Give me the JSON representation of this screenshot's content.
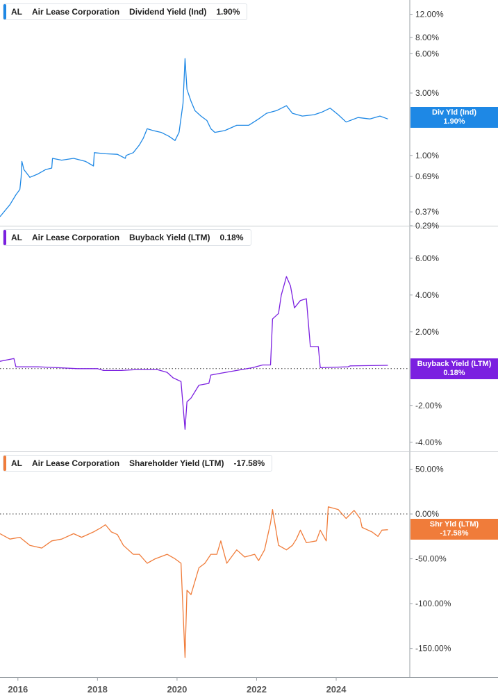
{
  "chart_data": [
    {
      "type": "line",
      "ticker": "AL",
      "company": "Air Lease Corporation",
      "metric": "Dividend Yield (Ind)",
      "current_value": "1.90%",
      "badge_label": "Div Yld (Ind)",
      "color": "#1e88e5",
      "scale": "log",
      "ylim": [
        0.29,
        14
      ],
      "yticks": [
        {
          "value": 12,
          "label": "12.00%"
        },
        {
          "value": 8,
          "label": "8.00%"
        },
        {
          "value": 6,
          "label": "6.00%"
        },
        {
          "value": 3,
          "label": "3.00%"
        },
        {
          "value": 1,
          "label": "1.00%"
        },
        {
          "value": 0.69,
          "label": "0.69%"
        },
        {
          "value": 0.37,
          "label": "0.37%"
        },
        {
          "value": 0.29,
          "label": "0.29%"
        }
      ],
      "baseline": null,
      "points": [
        [
          2015.55,
          0.34
        ],
        [
          2015.8,
          0.42
        ],
        [
          2015.95,
          0.5
        ],
        [
          2016.05,
          0.55
        ],
        [
          2016.08,
          0.68
        ],
        [
          2016.1,
          0.9
        ],
        [
          2016.15,
          0.78
        ],
        [
          2016.3,
          0.68
        ],
        [
          2016.5,
          0.72
        ],
        [
          2016.7,
          0.78
        ],
        [
          2016.85,
          0.8
        ],
        [
          2016.87,
          0.95
        ],
        [
          2017.1,
          0.92
        ],
        [
          2017.4,
          0.95
        ],
        [
          2017.7,
          0.9
        ],
        [
          2017.9,
          0.83
        ],
        [
          2017.92,
          1.05
        ],
        [
          2018.2,
          1.03
        ],
        [
          2018.5,
          1.02
        ],
        [
          2018.7,
          0.95
        ],
        [
          2018.72,
          1.0
        ],
        [
          2018.9,
          1.05
        ],
        [
          2019.05,
          1.2
        ],
        [
          2019.15,
          1.35
        ],
        [
          2019.25,
          1.6
        ],
        [
          2019.4,
          1.55
        ],
        [
          2019.6,
          1.5
        ],
        [
          2019.8,
          1.4
        ],
        [
          2019.95,
          1.3
        ],
        [
          2020.05,
          1.5
        ],
        [
          2020.15,
          2.5
        ],
        [
          2020.2,
          5.5
        ],
        [
          2020.25,
          3.2
        ],
        [
          2020.35,
          2.6
        ],
        [
          2020.45,
          2.2
        ],
        [
          2020.6,
          2.0
        ],
        [
          2020.75,
          1.85
        ],
        [
          2020.85,
          1.6
        ],
        [
          2020.95,
          1.5
        ],
        [
          2021.2,
          1.55
        ],
        [
          2021.5,
          1.7
        ],
        [
          2021.8,
          1.7
        ],
        [
          2022.05,
          1.9
        ],
        [
          2022.25,
          2.1
        ],
        [
          2022.5,
          2.2
        ],
        [
          2022.75,
          2.4
        ],
        [
          2022.9,
          2.1
        ],
        [
          2023.15,
          2.0
        ],
        [
          2023.45,
          2.05
        ],
        [
          2023.65,
          2.15
        ],
        [
          2023.85,
          2.3
        ],
        [
          2024.05,
          2.05
        ],
        [
          2024.25,
          1.8
        ],
        [
          2024.55,
          1.95
        ],
        [
          2024.85,
          1.9
        ],
        [
          2025.1,
          2.0
        ],
        [
          2025.3,
          1.9
        ]
      ]
    },
    {
      "type": "line",
      "ticker": "AL",
      "company": "Air Lease Corporation",
      "metric": "Buyback Yield (LTM)",
      "current_value": "0.18%",
      "badge_label": "Buyback Yield (LTM)",
      "color": "#7b1fe0",
      "scale": "linear",
      "ylim": [
        -4.5,
        7.2
      ],
      "yticks": [
        {
          "value": 6,
          "label": "6.00%"
        },
        {
          "value": 4,
          "label": "4.00%"
        },
        {
          "value": 2,
          "label": "2.00%"
        },
        {
          "value": -2,
          "label": "-2.00%"
        },
        {
          "value": -4,
          "label": "-4.00%"
        }
      ],
      "baseline": 0,
      "points": [
        [
          2015.55,
          0.4
        ],
        [
          2015.9,
          0.55
        ],
        [
          2015.95,
          0.1
        ],
        [
          2016.5,
          0.1
        ],
        [
          2017.0,
          0.05
        ],
        [
          2017.5,
          0.0
        ],
        [
          2018.0,
          0.0
        ],
        [
          2018.15,
          -0.1
        ],
        [
          2018.6,
          -0.1
        ],
        [
          2019.0,
          -0.05
        ],
        [
          2019.5,
          -0.05
        ],
        [
          2019.75,
          -0.2
        ],
        [
          2019.9,
          -0.5
        ],
        [
          2020.1,
          -0.7
        ],
        [
          2020.2,
          -3.3
        ],
        [
          2020.25,
          -1.8
        ],
        [
          2020.35,
          -1.6
        ],
        [
          2020.55,
          -0.9
        ],
        [
          2020.8,
          -0.8
        ],
        [
          2020.85,
          -0.35
        ],
        [
          2021.1,
          -0.25
        ],
        [
          2021.5,
          -0.1
        ],
        [
          2021.9,
          0.05
        ],
        [
          2022.15,
          0.2
        ],
        [
          2022.35,
          0.2
        ],
        [
          2022.4,
          2.7
        ],
        [
          2022.55,
          3.0
        ],
        [
          2022.62,
          4.0
        ],
        [
          2022.75,
          5.0
        ],
        [
          2022.85,
          4.5
        ],
        [
          2022.95,
          3.3
        ],
        [
          2023.1,
          3.7
        ],
        [
          2023.25,
          3.8
        ],
        [
          2023.35,
          1.2
        ],
        [
          2023.55,
          1.2
        ],
        [
          2023.6,
          0.05
        ],
        [
          2024.3,
          0.1
        ],
        [
          2024.35,
          0.15
        ],
        [
          2025.3,
          0.18
        ]
      ]
    },
    {
      "type": "line",
      "ticker": "AL",
      "company": "Air Lease Corporation",
      "metric": "Shareholder Yield (LTM)",
      "current_value": "-17.58%",
      "badge_label": "Shr Yld (LTM)",
      "color": "#f07c3a",
      "scale": "linear",
      "ylim": [
        -182,
        62
      ],
      "yticks": [
        {
          "value": 50,
          "label": "50.00%"
        },
        {
          "value": 0,
          "label": "0.00%"
        },
        {
          "value": -50,
          "label": "-50.00%"
        },
        {
          "value": -100,
          "label": "-100.00%"
        },
        {
          "value": -150,
          "label": "-150.00%"
        }
      ],
      "baseline": 0,
      "points": [
        [
          2015.55,
          -22
        ],
        [
          2015.8,
          -28
        ],
        [
          2016.05,
          -26
        ],
        [
          2016.3,
          -35
        ],
        [
          2016.6,
          -38
        ],
        [
          2016.85,
          -30
        ],
        [
          2017.1,
          -28
        ],
        [
          2017.4,
          -22
        ],
        [
          2017.6,
          -26
        ],
        [
          2017.9,
          -20
        ],
        [
          2018.1,
          -15
        ],
        [
          2018.2,
          -12
        ],
        [
          2018.35,
          -20
        ],
        [
          2018.5,
          -23
        ],
        [
          2018.65,
          -35
        ],
        [
          2018.9,
          -45
        ],
        [
          2019.05,
          -45
        ],
        [
          2019.25,
          -55
        ],
        [
          2019.45,
          -50
        ],
        [
          2019.75,
          -45
        ],
        [
          2019.95,
          -50
        ],
        [
          2020.1,
          -55
        ],
        [
          2020.2,
          -160
        ],
        [
          2020.25,
          -85
        ],
        [
          2020.35,
          -90
        ],
        [
          2020.55,
          -60
        ],
        [
          2020.7,
          -55
        ],
        [
          2020.85,
          -45
        ],
        [
          2021.0,
          -45
        ],
        [
          2021.1,
          -30
        ],
        [
          2021.25,
          -55
        ],
        [
          2021.5,
          -40
        ],
        [
          2021.7,
          -48
        ],
        [
          2021.95,
          -45
        ],
        [
          2022.05,
          -52
        ],
        [
          2022.2,
          -40
        ],
        [
          2022.35,
          -10
        ],
        [
          2022.4,
          5
        ],
        [
          2022.55,
          -35
        ],
        [
          2022.75,
          -40
        ],
        [
          2022.9,
          -35
        ],
        [
          2023.0,
          -28
        ],
        [
          2023.1,
          -18
        ],
        [
          2023.25,
          -32
        ],
        [
          2023.5,
          -30
        ],
        [
          2023.6,
          -18
        ],
        [
          2023.75,
          -30
        ],
        [
          2023.8,
          8
        ],
        [
          2024.05,
          5
        ],
        [
          2024.25,
          -5
        ],
        [
          2024.45,
          4
        ],
        [
          2024.6,
          -5
        ],
        [
          2024.65,
          -15
        ],
        [
          2024.9,
          -20
        ],
        [
          2025.05,
          -25
        ],
        [
          2025.15,
          -18
        ],
        [
          2025.3,
          -17.58
        ]
      ]
    }
  ],
  "x_axis": {
    "xlim": [
      2015.55,
      2025.85
    ],
    "ticks": [
      {
        "value": 2016,
        "label": "2016"
      },
      {
        "value": 2018,
        "label": "2018"
      },
      {
        "value": 2020,
        "label": "2020"
      },
      {
        "value": 2022,
        "label": "2022"
      },
      {
        "value": 2024,
        "label": "2024"
      }
    ]
  }
}
